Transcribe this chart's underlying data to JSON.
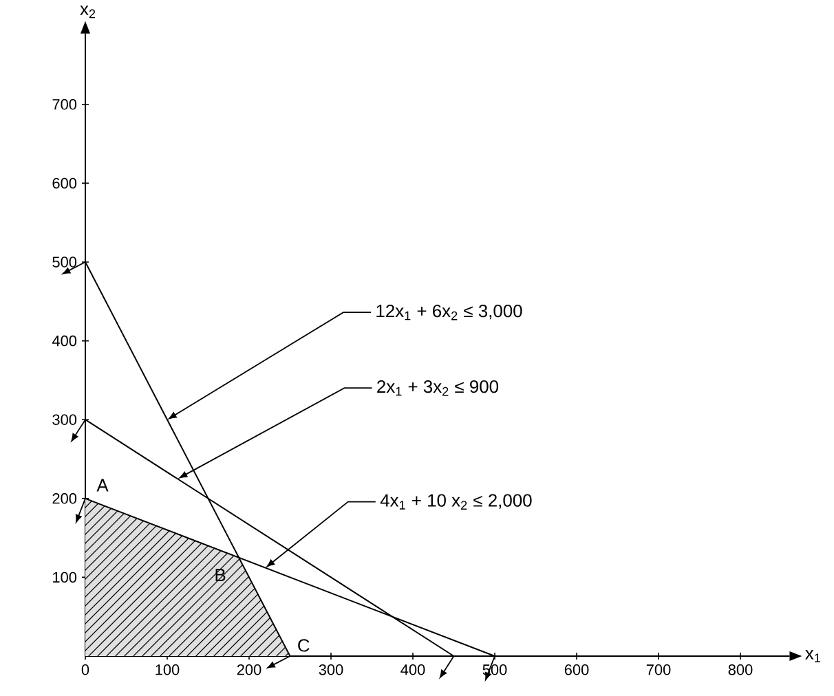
{
  "chart_data": {
    "type": "line",
    "xlabel": "x$_{1}$",
    "ylabel": "x$_{2}$",
    "xlim": [
      0,
      860
    ],
    "ylim": [
      0,
      790
    ],
    "xticks": [
      0,
      100,
      200,
      300,
      400,
      500,
      600,
      700,
      800
    ],
    "yticks": [
      100,
      200,
      300,
      400,
      500,
      600,
      700
    ],
    "grid": false,
    "line_style": "solid",
    "series": [
      {
        "type": "area",
        "color": "#e0e0e0",
        "x": [
          0,
          187.5,
          250
        ],
        "values": [
          200,
          125,
          0
        ]
      },
      {
        "color": "#000000",
        "x": [
          0,
          250
        ],
        "values": [
          500,
          0
        ]
      },
      {
        "color": "#000000",
        "x": [
          0,
          450
        ],
        "values": [
          300,
          0
        ]
      },
      {
        "color": "#000000",
        "x": [
          0,
          500
        ],
        "values": [
          200,
          0
        ]
      }
    ],
    "annotations": [
      {
        "text": "12x$_{1}$ + 6x$_{2}$ ≤ 3,000",
        "x": 100,
        "y": 300
      },
      {
        "text": "2x$_{1}$ + 3x$_{2}$ ≤ 900",
        "x": 113,
        "y": 225
      },
      {
        "text": "4x$_{1}$ + 10 x$_{2}$ ≤ 2,000",
        "x": 220,
        "y": 112
      },
      {
        "text": "A",
        "x": 0,
        "y": 200
      },
      {
        "text": "B",
        "x": 187.5,
        "y": 125
      },
      {
        "text": "C",
        "x": 250,
        "y": 0
      }
    ]
  }
}
